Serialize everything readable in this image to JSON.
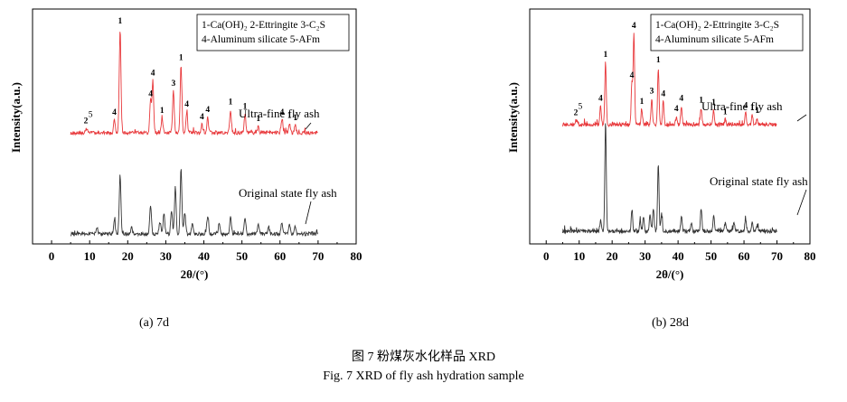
{
  "chart_data": [
    {
      "type": "line",
      "panel_label": "(a) 7d",
      "xlabel": "2θ/(°)",
      "ylabel": "Intensity(a.u.)",
      "xlim": [
        -5,
        80
      ],
      "xticks": [
        0,
        10,
        20,
        30,
        40,
        50,
        60,
        70,
        80
      ],
      "legend": {
        "position": "top-right",
        "lines": [
          "1-Ca(OH)₂  2-Ettringite  3-C₂S",
          "4-Aluminum silicate      5-AFm"
        ]
      },
      "series": [
        {
          "name": "Ultra-fine fly ash",
          "color": "#e8383b",
          "range": [
            5,
            70
          ],
          "peaks": [
            {
              "x": 9.0,
              "h": 4,
              "label": "2"
            },
            {
              "x": 9.5,
              "h": 3,
              "label": "5"
            },
            {
              "x": 16.5,
              "h": 12,
              "label": "4"
            },
            {
              "x": 18.0,
              "h": 100,
              "label": "1"
            },
            {
              "x": 26.0,
              "h": 30,
              "label": "4"
            },
            {
              "x": 26.6,
              "h": 50,
              "label": "4"
            },
            {
              "x": 29.0,
              "h": 14,
              "label": "1"
            },
            {
              "x": 32.0,
              "h": 40,
              "label": "3"
            },
            {
              "x": 34.0,
              "h": 65,
              "label": "1"
            },
            {
              "x": 35.5,
              "h": 20,
              "label": "4"
            },
            {
              "x": 39.5,
              "h": 8,
              "label": "4"
            },
            {
              "x": 41.0,
              "h": 15,
              "label": "4"
            },
            {
              "x": 47.0,
              "h": 22,
              "label": "1"
            },
            {
              "x": 50.8,
              "h": 18,
              "label": "1"
            },
            {
              "x": 54.3,
              "h": 6,
              "label": "1"
            },
            {
              "x": 60.5,
              "h": 12,
              "label": "4"
            },
            {
              "x": 62.5,
              "h": 9,
              "label": "1"
            },
            {
              "x": 64.0,
              "h": 7,
              "label": "1"
            }
          ]
        },
        {
          "name": "Original state fly ash",
          "color": "#333333",
          "range": [
            5,
            70
          ],
          "peaks": [
            {
              "x": 12.0,
              "h": 6
            },
            {
              "x": 16.5,
              "h": 15
            },
            {
              "x": 18.0,
              "h": 60
            },
            {
              "x": 21.0,
              "h": 6
            },
            {
              "x": 26.0,
              "h": 28
            },
            {
              "x": 28.5,
              "h": 12
            },
            {
              "x": 29.5,
              "h": 20
            },
            {
              "x": 31.5,
              "h": 24
            },
            {
              "x": 32.5,
              "h": 48
            },
            {
              "x": 34.0,
              "h": 65
            },
            {
              "x": 35.0,
              "h": 22
            },
            {
              "x": 37.0,
              "h": 10
            },
            {
              "x": 41.0,
              "h": 18
            },
            {
              "x": 44.0,
              "h": 10
            },
            {
              "x": 47.0,
              "h": 18
            },
            {
              "x": 50.8,
              "h": 16
            },
            {
              "x": 54.3,
              "h": 10
            },
            {
              "x": 57.0,
              "h": 8
            },
            {
              "x": 60.5,
              "h": 12
            },
            {
              "x": 62.5,
              "h": 10
            },
            {
              "x": 64.0,
              "h": 8
            }
          ]
        }
      ]
    },
    {
      "type": "line",
      "panel_label": "(b) 28d",
      "xlabel": "2θ/(°)",
      "ylabel": "Intensity(a.u.)",
      "xlim": [
        -5,
        80
      ],
      "xticks": [
        0,
        10,
        20,
        30,
        40,
        50,
        60,
        70,
        80
      ],
      "legend": {
        "position": "top-right",
        "lines": [
          "1-Ca(OH)₂  2-Ettringite  3-C₂S",
          "4-Aluminum silicate      5-AFm"
        ]
      },
      "series": [
        {
          "name": "Ultra-fine fly ash",
          "color": "#e8383b",
          "range": [
            5,
            70
          ],
          "peaks": [
            {
              "x": 9.0,
              "h": 4,
              "label": "2"
            },
            {
              "x": 9.5,
              "h": 3,
              "label": "5"
            },
            {
              "x": 16.5,
              "h": 18,
              "label": "4"
            },
            {
              "x": 18.0,
              "h": 60,
              "label": "1"
            },
            {
              "x": 26.0,
              "h": 40,
              "label": "4"
            },
            {
              "x": 26.6,
              "h": 88,
              "label": "4"
            },
            {
              "x": 29.0,
              "h": 15,
              "label": "1"
            },
            {
              "x": 32.0,
              "h": 25,
              "label": "3"
            },
            {
              "x": 34.0,
              "h": 55,
              "label": "1"
            },
            {
              "x": 35.5,
              "h": 22,
              "label": "4"
            },
            {
              "x": 39.5,
              "h": 8,
              "label": "4"
            },
            {
              "x": 41.0,
              "h": 18,
              "label": "4"
            },
            {
              "x": 47.0,
              "h": 16,
              "label": "1"
            },
            {
              "x": 50.8,
              "h": 14,
              "label": "1"
            },
            {
              "x": 54.3,
              "h": 5,
              "label": "1"
            },
            {
              "x": 60.5,
              "h": 11,
              "label": "4"
            },
            {
              "x": 62.5,
              "h": 9,
              "label": "1"
            },
            {
              "x": 64.0,
              "h": 6,
              "label": "1"
            }
          ]
        },
        {
          "name": "Original state fly ash",
          "color": "#333333",
          "range": [
            5,
            70
          ],
          "peaks": [
            {
              "x": 16.5,
              "h": 10
            },
            {
              "x": 18.0,
              "h": 100
            },
            {
              "x": 26.0,
              "h": 20
            },
            {
              "x": 28.5,
              "h": 10
            },
            {
              "x": 29.5,
              "h": 14
            },
            {
              "x": 31.5,
              "h": 16
            },
            {
              "x": 32.5,
              "h": 22
            },
            {
              "x": 34.0,
              "h": 62
            },
            {
              "x": 35.0,
              "h": 16
            },
            {
              "x": 41.0,
              "h": 14
            },
            {
              "x": 44.0,
              "h": 8
            },
            {
              "x": 47.0,
              "h": 22
            },
            {
              "x": 50.8,
              "h": 16
            },
            {
              "x": 54.3,
              "h": 8
            },
            {
              "x": 57.0,
              "h": 8
            },
            {
              "x": 60.5,
              "h": 12
            },
            {
              "x": 62.5,
              "h": 8
            },
            {
              "x": 64.0,
              "h": 6
            }
          ]
        }
      ]
    }
  ],
  "caption_cn": "图 7  粉煤灰水化样品 XRD",
  "caption_en": "Fig. 7 XRD of fly ash hydration sample"
}
